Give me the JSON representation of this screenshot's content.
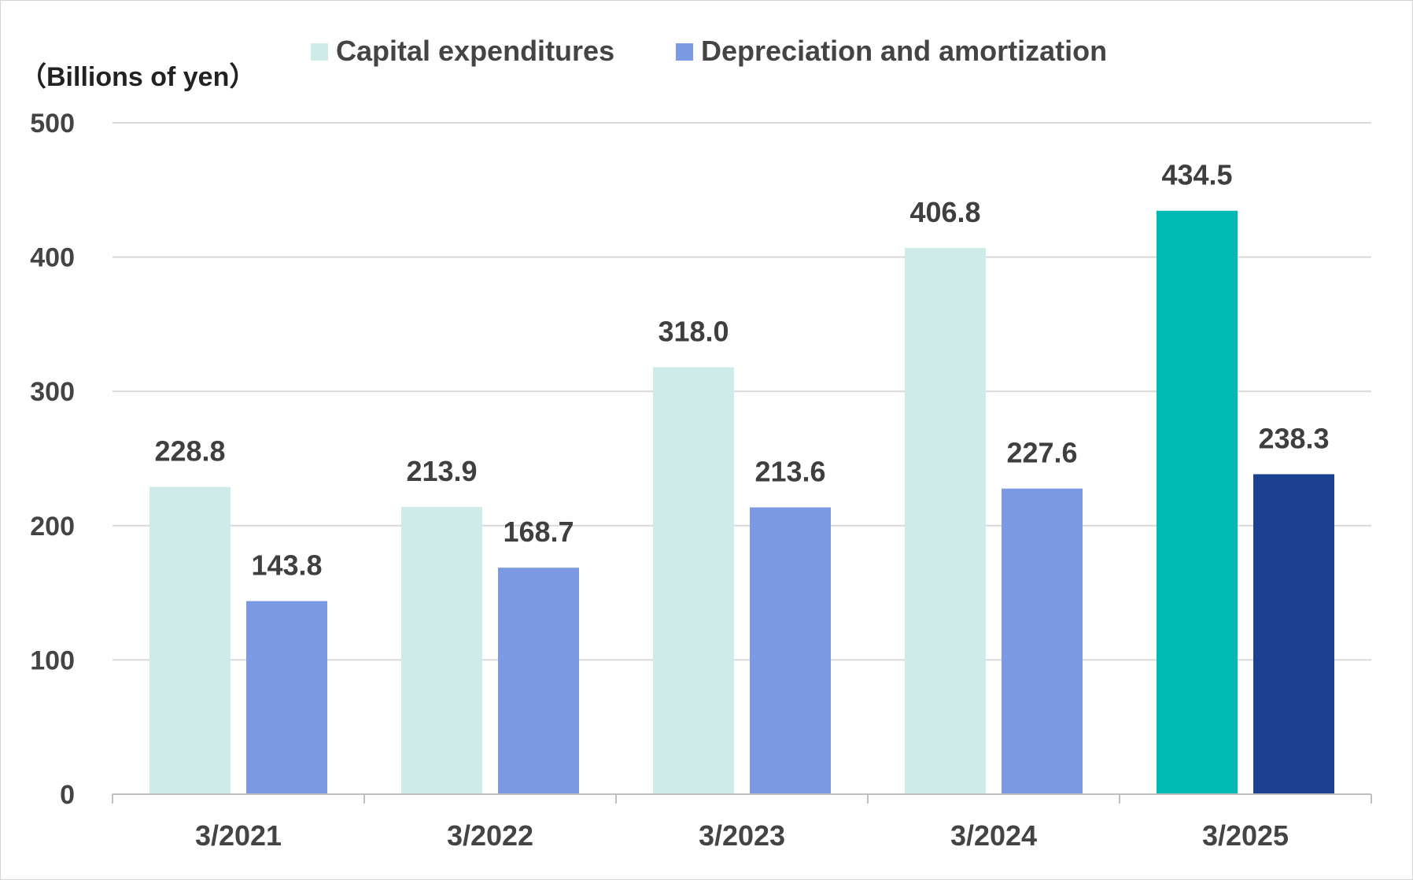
{
  "chart_data": {
    "type": "bar",
    "title": "",
    "ylabel": "（Billions of yen）",
    "xlabel": "",
    "ylim": [
      0,
      500
    ],
    "yticks": [
      0,
      100,
      200,
      300,
      400,
      500
    ],
    "grid": true,
    "legend_position": "top",
    "categories": [
      "3/2021",
      "3/2022",
      "3/2023",
      "3/2024",
      "3/2025"
    ],
    "series": [
      {
        "name": "Capital expenditures",
        "color": "#CFEBE9",
        "highlight_color": "#00B9B3",
        "values": [
          228.8,
          213.9,
          318.0,
          406.8,
          434.5
        ],
        "labels": [
          "228.8",
          "213.9",
          "318.0",
          "406.8",
          "434.5"
        ]
      },
      {
        "name": "Depreciation and amortization",
        "color": "#7B9AE3",
        "highlight_color": "#1C4190",
        "values": [
          143.8,
          168.7,
          213.6,
          227.6,
          238.3
        ],
        "labels": [
          "143.8",
          "168.7",
          "213.6",
          "227.6",
          "238.3"
        ]
      }
    ],
    "highlight_index": 4
  }
}
